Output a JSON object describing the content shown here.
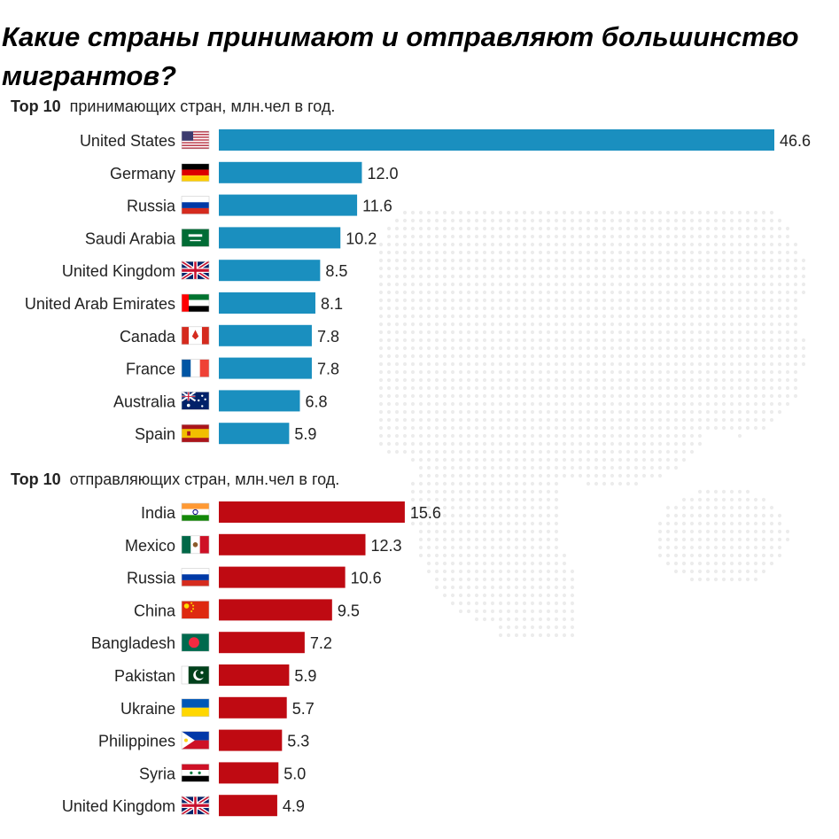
{
  "title": "Какие страны принимают и отправляют большинство мигрантов?",
  "chart_data": [
    {
      "type": "bar",
      "orientation": "horizontal",
      "title_prefix": "Top 10",
      "title": "принимающих стран, млн.чел в год.",
      "color": "#1a8fbf",
      "categories": [
        "United States",
        "Germany",
        "Russia",
        "Saudi Arabia",
        "United Kingdom",
        "United Arab Emirates",
        "Canada",
        "France",
        "Australia",
        "Spain"
      ],
      "flags": [
        "us",
        "de",
        "ru",
        "sa",
        "gb",
        "ae",
        "ca",
        "fr",
        "au",
        "es"
      ],
      "values": [
        46.6,
        12.0,
        11.6,
        10.2,
        8.5,
        8.1,
        7.8,
        7.8,
        6.8,
        5.9
      ],
      "labels": [
        "46.6",
        "12.0",
        "11.6",
        "10.2",
        "8.5",
        "8.1",
        "7.8",
        "7.8",
        "6.8",
        "5.9"
      ],
      "xlim": [
        0,
        46.6
      ],
      "grid": false
    },
    {
      "type": "bar",
      "orientation": "horizontal",
      "title_prefix": "Top 10",
      "title": "отправляющих  стран, млн.чел в год.",
      "color": "#bf0a12",
      "categories": [
        "India",
        "Mexico",
        "Russia",
        "China",
        "Bangladesh",
        "Pakistan",
        "Ukraine",
        "Philippines",
        "Syria",
        "United Kingdom"
      ],
      "flags": [
        "in",
        "mx",
        "ru",
        "cn",
        "bd",
        "pk",
        "ua",
        "ph",
        "sy",
        "gb"
      ],
      "values": [
        15.6,
        12.3,
        10.6,
        9.5,
        7.2,
        5.9,
        5.7,
        5.3,
        5.0,
        4.9
      ],
      "labels": [
        "15.6",
        "12.3",
        "10.6",
        "9.5",
        "7.2",
        "5.9",
        "5.7",
        "5.3",
        "5.0",
        "4.9"
      ],
      "xlim": [
        0,
        46.6
      ],
      "grid": false
    }
  ]
}
